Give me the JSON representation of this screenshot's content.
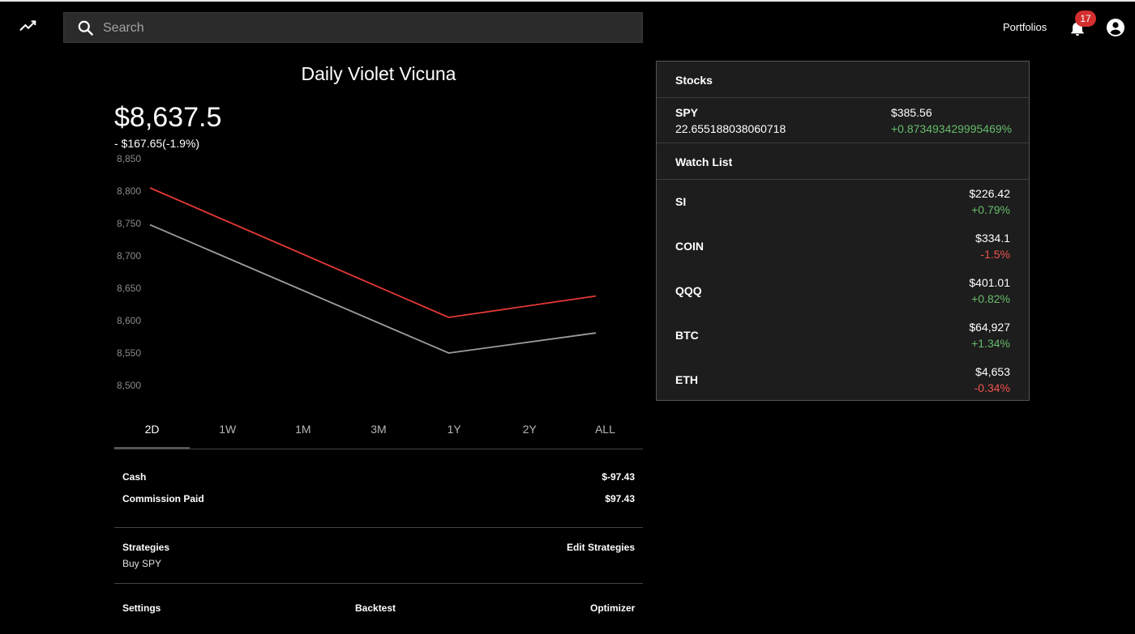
{
  "search": {
    "placeholder": "Search"
  },
  "nav": {
    "portfolios": "Portfolios",
    "notification_count": "17"
  },
  "portfolio": {
    "title": "Daily Violet Vicuna",
    "value": "$8,637.5",
    "change": "- $167.65(-1.9%)"
  },
  "chart_data": {
    "type": "line",
    "x": [
      0,
      1,
      2
    ],
    "series": [
      {
        "values": [
          8805,
          8605,
          8638
        ],
        "color": "#e53935"
      },
      {
        "values": [
          8748,
          8550,
          8581
        ],
        "color": "#9e9e9e"
      }
    ],
    "yticks": [
      "8,850",
      "8,800",
      "8,750",
      "8,700",
      "8,650",
      "8,600",
      "8,550",
      "8,500"
    ],
    "ylim": [
      8500,
      8850
    ],
    "grid": false
  },
  "tabs": [
    "2D",
    "1W",
    "1M",
    "3M",
    "1Y",
    "2Y",
    "ALL"
  ],
  "account": {
    "cash_label": "Cash",
    "cash_value": "$-97.43",
    "commission_label": "Commission Paid",
    "commission_value": "$97.43"
  },
  "strategies": {
    "label": "Strategies",
    "edit": "Edit Strategies",
    "item": "Buy SPY"
  },
  "footer": {
    "settings": "Settings",
    "backtest": "Backtest",
    "optimizer": "Optimizer"
  },
  "stocks": {
    "header": "Stocks",
    "items": [
      {
        "symbol": "SPY",
        "qty": "22.655188038060718",
        "price": "$385.56",
        "change": "+0.873493429995469%"
      }
    ]
  },
  "watchlist": {
    "header": "Watch List",
    "items": [
      {
        "symbol": "SI",
        "price": "$226.42",
        "change": "+0.79%",
        "dir": "pos"
      },
      {
        "symbol": "COIN",
        "price": "$334.1",
        "change": "-1.5%",
        "dir": "neg"
      },
      {
        "symbol": "QQQ",
        "price": "$401.01",
        "change": "+0.82%",
        "dir": "pos"
      },
      {
        "symbol": "BTC",
        "price": "$64,927",
        "change": "+1.34%",
        "dir": "pos"
      },
      {
        "symbol": "ETH",
        "price": "$4,653",
        "change": "-0.34%",
        "dir": "neg"
      }
    ]
  },
  "colors": {
    "positive": "#66bb6a",
    "negative": "#ef5350",
    "badge": "#d32f2f"
  },
  "icons": {
    "logo": "trending-up-icon",
    "search": "search-icon",
    "bell": "bell-icon",
    "account": "account-circle-icon"
  }
}
